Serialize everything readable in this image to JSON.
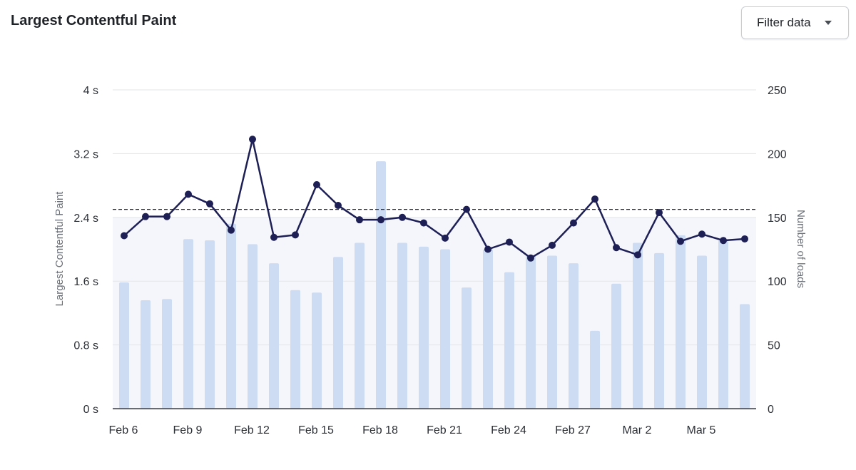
{
  "header": {
    "title": "Largest Contentful Paint",
    "filter_label": "Filter data"
  },
  "chart_data": {
    "type": "bar+line",
    "title": "Largest Contentful Paint",
    "y_left": {
      "label": "Largest Contentful Paint",
      "min": 0,
      "max": 4,
      "ticks": [
        0,
        0.8,
        1.6,
        2.4,
        3.2,
        4
      ],
      "tick_labels": [
        "0 s",
        "0.8 s",
        "1.6 s",
        "2.4 s",
        "3.2 s",
        "4 s"
      ]
    },
    "y_right": {
      "label": "Number of loads",
      "min": 0,
      "max": 250,
      "ticks": [
        0,
        50,
        100,
        150,
        200,
        250
      ],
      "tick_labels": [
        "0",
        "50",
        "100",
        "150",
        "200",
        "250"
      ]
    },
    "x_labels": [
      "Feb 6",
      "Feb 9",
      "Feb 12",
      "Feb 15",
      "Feb 18",
      "Feb 21",
      "Feb 24",
      "Feb 27",
      "Mar 2",
      "Mar 5"
    ],
    "x_label_every": 3,
    "threshold_seconds": 2.5,
    "good_band_max_seconds": 2.4,
    "series": [
      {
        "name": "Number of loads",
        "kind": "bar",
        "axis": "right",
        "color": "#cddcf2",
        "values": [
          99,
          85,
          86,
          133,
          132,
          145,
          129,
          114,
          93,
          91,
          119,
          130,
          194,
          130,
          127,
          125,
          95,
          125,
          107,
          120,
          120,
          114,
          61,
          98,
          130,
          122,
          136,
          120,
          132,
          82
        ]
      },
      {
        "name": "Largest Contentful Paint (s)",
        "kind": "line",
        "axis": "left",
        "color": "#1d1f55",
        "values": [
          2.17,
          2.41,
          2.41,
          2.69,
          2.57,
          2.24,
          3.38,
          2.15,
          2.18,
          2.81,
          2.55,
          2.37,
          2.37,
          2.4,
          2.33,
          2.14,
          2.5,
          2.0,
          2.09,
          1.89,
          2.05,
          2.33,
          2.63,
          2.02,
          1.93,
          2.46,
          2.1,
          2.19,
          2.11,
          2.13
        ]
      }
    ]
  }
}
